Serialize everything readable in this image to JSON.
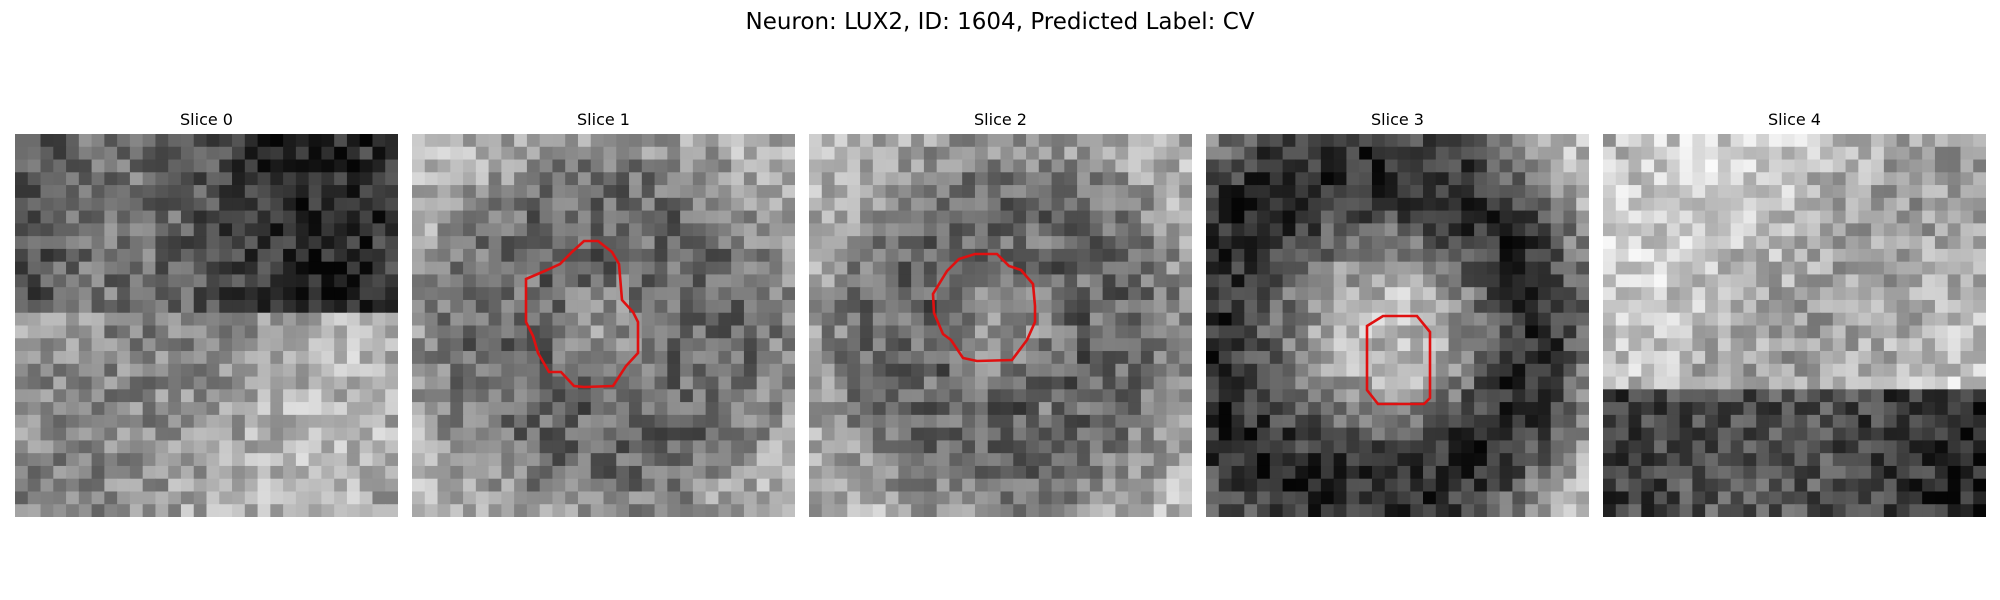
{
  "figure": {
    "title": "Neuron: LUX2, ID: 1604, Predicted Label: CV"
  },
  "colors": {
    "contour": "#e01010",
    "background": "#ffffff"
  },
  "slices": [
    {
      "label": "Slice 0",
      "has_contour": false,
      "tone": "dark-top"
    },
    {
      "label": "Slice 1",
      "has_contour": true,
      "tone": "mixed"
    },
    {
      "label": "Slice 2",
      "has_contour": true,
      "tone": "mixed"
    },
    {
      "label": "Slice 3",
      "has_contour": true,
      "tone": "dark-center"
    },
    {
      "label": "Slice 4",
      "has_contour": false,
      "tone": "dark-bottom"
    }
  ]
}
